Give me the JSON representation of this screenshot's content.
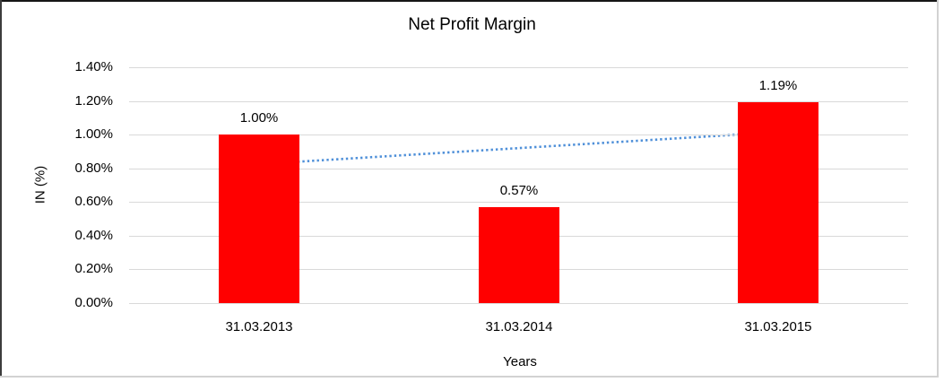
{
  "chart_data": {
    "type": "bar",
    "title": "Net Profit Margin",
    "xlabel": "Years",
    "ylabel": "IN (%)",
    "categories": [
      "31.03.2013",
      "31.03.2014",
      "31.03.2015"
    ],
    "values": [
      1.0,
      0.57,
      1.19
    ],
    "data_labels": [
      "1.00%",
      "0.57%",
      "1.19%"
    ],
    "yticks": [
      "1.40%",
      "1.20%",
      "1.00%",
      "0.80%",
      "0.60%",
      "0.40%",
      "0.20%",
      "0.00%"
    ],
    "ylim": [
      0,
      1.4
    ],
    "ytick_step": 0.2,
    "grid": true,
    "legend": "none",
    "bar_color": "#FF0000",
    "gridline_color": "#D9D9D9",
    "text_color": "#000000",
    "trendline": {
      "style": "dotted",
      "color": "#4F90D9",
      "start_value": 0.825,
      "end_value": 1.015
    }
  }
}
